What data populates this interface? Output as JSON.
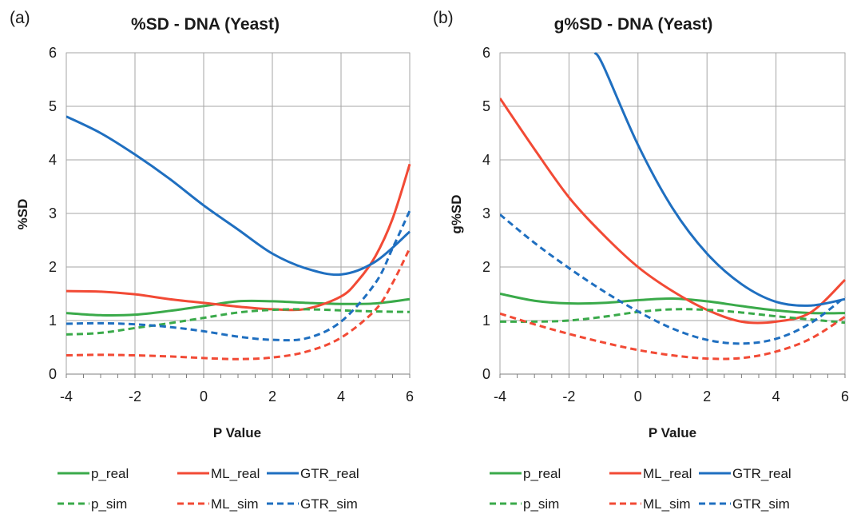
{
  "chart_data": [
    {
      "type": "line",
      "panel_label": "(a)",
      "title": "%SD - DNA (Yeast)",
      "xlabel": "P  Value",
      "ylabel": "%SD",
      "xlim": [
        -4,
        6
      ],
      "ylim": [
        0,
        6
      ],
      "x_ticks": [
        "-4",
        "-2",
        "0",
        "2",
        "4",
        "6"
      ],
      "y_ticks": [
        "0",
        "1",
        "2",
        "3",
        "4",
        "5",
        "6"
      ],
      "grid": true,
      "legend_position": "bottom",
      "series": [
        {
          "name": "p_real",
          "color": "#3aaa4a",
          "dash": "solid",
          "x": [
            -4,
            -3,
            -2,
            -1,
            0,
            1,
            2,
            3,
            4,
            5,
            6
          ],
          "y": [
            1.14,
            1.1,
            1.11,
            1.18,
            1.27,
            1.36,
            1.36,
            1.33,
            1.31,
            1.32,
            1.4
          ]
        },
        {
          "name": "ML_real",
          "color": "#f24a35",
          "dash": "solid",
          "x": [
            -4,
            -3,
            -2,
            -1,
            0,
            1,
            2,
            3,
            4,
            4.5,
            5,
            5.5,
            6
          ],
          "y": [
            1.55,
            1.54,
            1.49,
            1.4,
            1.33,
            1.26,
            1.21,
            1.22,
            1.45,
            1.75,
            2.2,
            2.9,
            3.92
          ]
        },
        {
          "name": "GTR_real",
          "color": "#1f6fc0",
          "dash": "solid",
          "x": [
            -4,
            -3,
            -2,
            -1,
            0,
            1,
            2,
            3,
            4,
            5,
            6
          ],
          "y": [
            4.81,
            4.5,
            4.1,
            3.65,
            3.15,
            2.7,
            2.25,
            1.97,
            1.86,
            2.1,
            2.66
          ]
        },
        {
          "name": "p_sim",
          "color": "#3aaa4a",
          "dash": "dashed",
          "x": [
            -4,
            -3,
            -2,
            -1,
            0,
            1,
            2,
            3,
            4,
            5,
            6
          ],
          "y": [
            0.74,
            0.77,
            0.86,
            0.95,
            1.05,
            1.15,
            1.2,
            1.21,
            1.19,
            1.17,
            1.16
          ]
        },
        {
          "name": "ML_sim",
          "color": "#f24a35",
          "dash": "dashed",
          "x": [
            -4,
            -3,
            -2,
            -1,
            0,
            1,
            2,
            3,
            4,
            5,
            5.5,
            6
          ],
          "y": [
            0.35,
            0.36,
            0.35,
            0.33,
            0.3,
            0.28,
            0.31,
            0.42,
            0.68,
            1.2,
            1.7,
            2.35
          ]
        },
        {
          "name": "GTR_sim",
          "color": "#1f6fc0",
          "dash": "dashed",
          "x": [
            -4,
            -3,
            -2,
            -1,
            0,
            1,
            2,
            3,
            4,
            5,
            5.5,
            6
          ],
          "y": [
            0.94,
            0.95,
            0.93,
            0.88,
            0.8,
            0.7,
            0.64,
            0.67,
            0.98,
            1.7,
            2.35,
            3.05
          ]
        }
      ]
    },
    {
      "type": "line",
      "panel_label": "(b)",
      "title": "g%SD - DNA (Yeast)",
      "xlabel": "P  Value",
      "ylabel": "g%SD",
      "xlim": [
        -4,
        6
      ],
      "ylim": [
        0,
        6
      ],
      "x_ticks": [
        "-4",
        "-2",
        "0",
        "2",
        "4",
        "6"
      ],
      "y_ticks": [
        "0",
        "1",
        "2",
        "3",
        "4",
        "5",
        "6"
      ],
      "grid": true,
      "legend_position": "bottom",
      "series": [
        {
          "name": "p_real",
          "color": "#3aaa4a",
          "dash": "solid",
          "x": [
            -4,
            -3,
            -2,
            -1,
            0,
            1,
            2,
            3,
            4,
            5,
            6
          ],
          "y": [
            1.5,
            1.37,
            1.32,
            1.33,
            1.38,
            1.41,
            1.36,
            1.27,
            1.19,
            1.14,
            1.14
          ]
        },
        {
          "name": "ML_real",
          "color": "#f24a35",
          "dash": "solid",
          "x": [
            -4,
            -3,
            -2,
            -1,
            0,
            1,
            2,
            3,
            4,
            5,
            6
          ],
          "y": [
            5.15,
            4.2,
            3.3,
            2.6,
            2.0,
            1.55,
            1.2,
            0.98,
            0.98,
            1.15,
            1.76
          ]
        },
        {
          "name": "GTR_real",
          "color": "#1f6fc0",
          "dash": "solid",
          "x": [
            -1.25,
            -1,
            0,
            1,
            2,
            3,
            4,
            5,
            6
          ],
          "y": [
            6.0,
            5.75,
            4.28,
            3.1,
            2.25,
            1.68,
            1.35,
            1.28,
            1.4
          ]
        },
        {
          "name": "p_sim",
          "color": "#3aaa4a",
          "dash": "dashed",
          "x": [
            -4,
            -3,
            -2,
            -1,
            0,
            1,
            2,
            3,
            4,
            5,
            6
          ],
          "y": [
            0.98,
            0.98,
            1.0,
            1.07,
            1.16,
            1.21,
            1.2,
            1.15,
            1.08,
            1.02,
            0.96
          ]
        },
        {
          "name": "ML_sim",
          "color": "#f24a35",
          "dash": "dashed",
          "x": [
            -4,
            -3,
            -2,
            -1,
            0,
            1,
            2,
            3,
            4,
            5,
            6
          ],
          "y": [
            1.13,
            0.93,
            0.75,
            0.59,
            0.45,
            0.35,
            0.29,
            0.3,
            0.42,
            0.66,
            1.07
          ]
        },
        {
          "name": "GTR_sim",
          "color": "#1f6fc0",
          "dash": "dashed",
          "x": [
            -4,
            -3,
            -2,
            -1,
            0,
            1,
            2,
            3,
            4,
            5,
            6
          ],
          "y": [
            2.98,
            2.45,
            1.98,
            1.55,
            1.17,
            0.85,
            0.64,
            0.57,
            0.66,
            0.95,
            1.44
          ]
        }
      ]
    }
  ]
}
